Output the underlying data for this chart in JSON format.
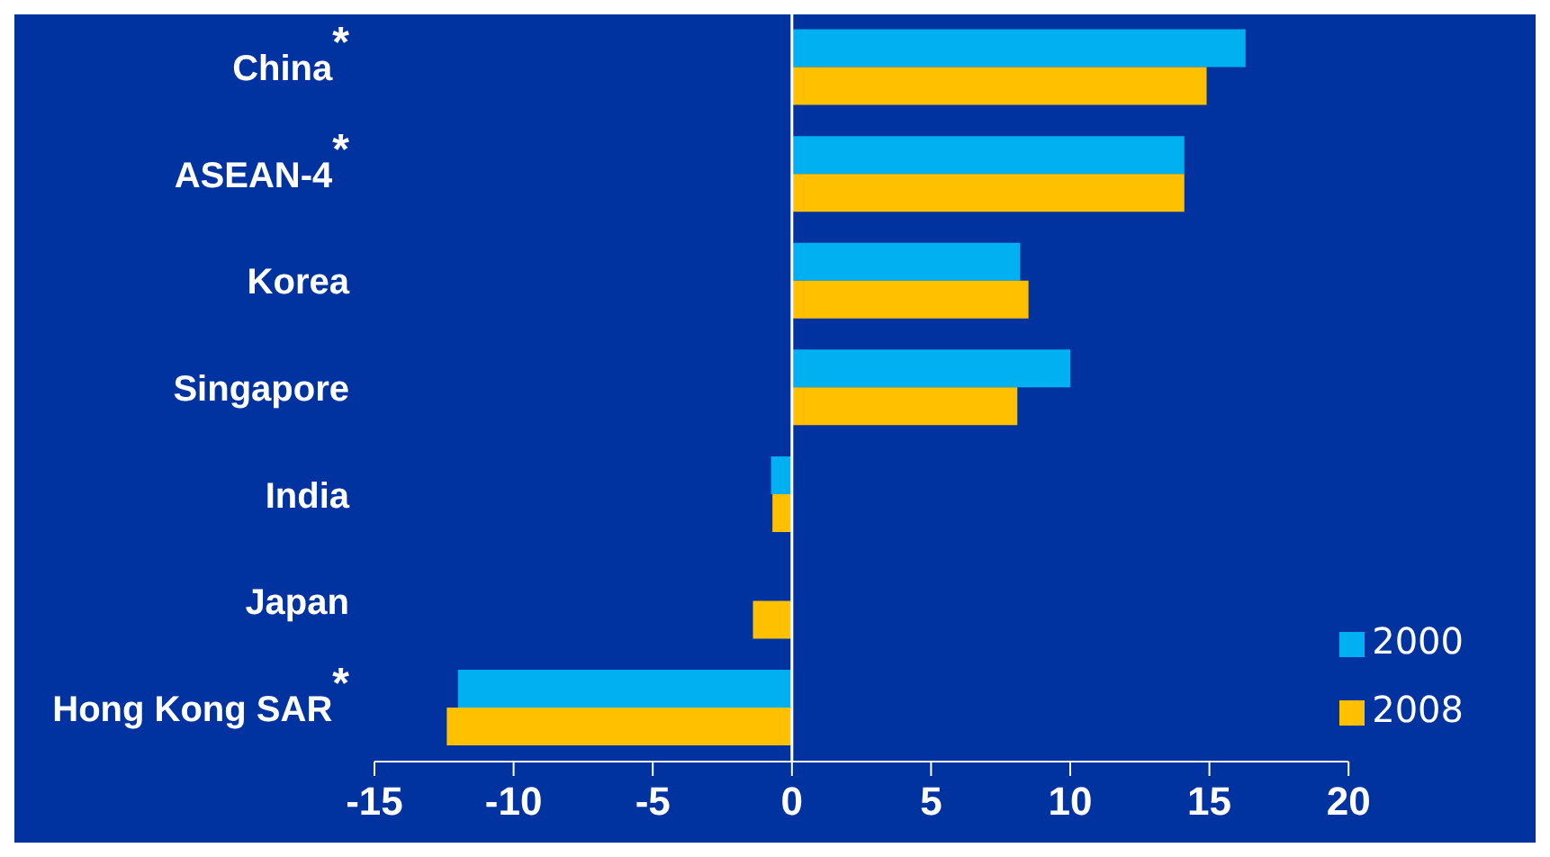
{
  "chart_data": {
    "type": "bar",
    "orientation": "horizontal",
    "categories": [
      "China$^{*}$",
      "ASEAN-4$^{*}$",
      "Korea",
      "Singapore",
      "India",
      "Japan",
      "Hong Kong SAR$^{*}$"
    ],
    "series": [
      {
        "name": "2000",
        "color": "#00b0f0",
        "values": [
          16.3,
          14.1,
          8.2,
          10.0,
          -0.75,
          null,
          -12.0
        ]
      },
      {
        "name": "2008",
        "color": "#ffc000",
        "values": [
          14.9,
          14.1,
          8.5,
          8.1,
          -0.7,
          -1.4,
          -12.4
        ]
      }
    ],
    "xlim": [
      -15,
      20
    ],
    "xticks": [
      -15,
      -10,
      -5,
      0,
      5,
      10,
      15,
      20
    ],
    "legend": "bottom right"
  }
}
